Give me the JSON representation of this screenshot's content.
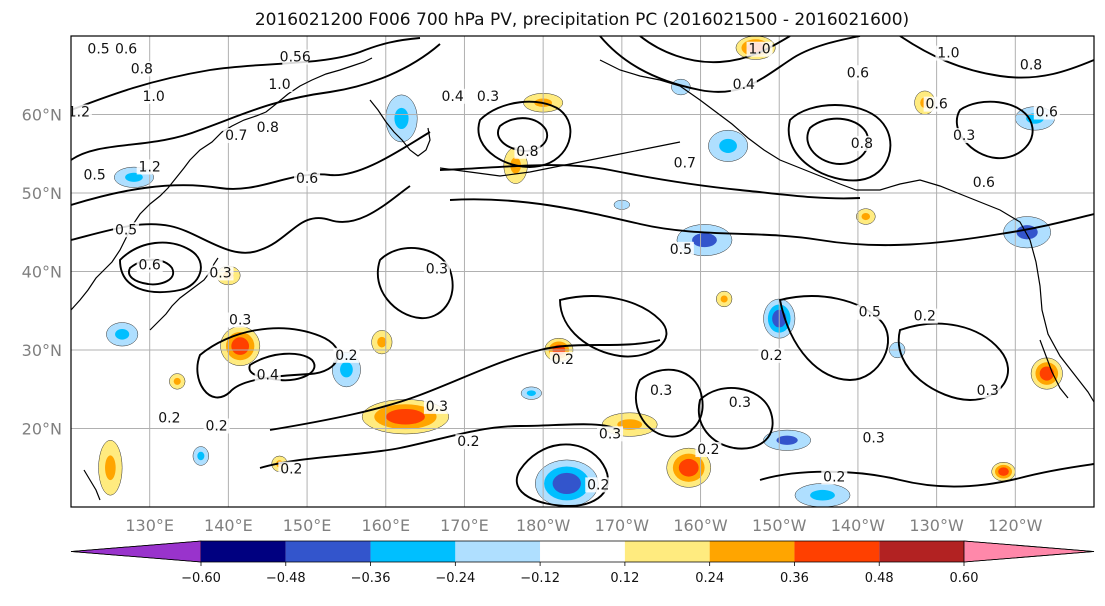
{
  "title": "2016021200 F006 700 hPa PV, precipitation PC (2016021500 - 2016021600)",
  "map": {
    "lon_range": [
      120,
      250
    ],
    "lat_range": [
      10,
      70
    ],
    "lat_labels": [
      {
        "lat": 20,
        "label": "20°N"
      },
      {
        "lat": 30,
        "label": "30°N"
      },
      {
        "lat": 40,
        "label": "40°N"
      },
      {
        "lat": 50,
        "label": "50°N"
      },
      {
        "lat": 60,
        "label": "60°N"
      }
    ],
    "lon_labels": [
      {
        "lon": 130,
        "label": "130°E"
      },
      {
        "lon": 140,
        "label": "140°E"
      },
      {
        "lon": 150,
        "label": "150°E"
      },
      {
        "lon": 160,
        "label": "160°E"
      },
      {
        "lon": 170,
        "label": "170°E"
      },
      {
        "lon": 180,
        "label": "180°W"
      },
      {
        "lon": 190,
        "label": "170°W"
      },
      {
        "lon": 200,
        "label": "160°W"
      },
      {
        "lon": 210,
        "label": "150°W"
      },
      {
        "lon": 220,
        "label": "140°W"
      },
      {
        "lon": 230,
        "label": "130°W"
      },
      {
        "lon": 240,
        "label": "120°W"
      }
    ],
    "contour_labels": [
      {
        "text": "0.5",
        "lon": 123.5,
        "lat": 68
      },
      {
        "text": "0.6",
        "lon": 127,
        "lat": 68
      },
      {
        "text": "0.8",
        "lon": 129,
        "lat": 65.5
      },
      {
        "text": "1.0",
        "lon": 130.5,
        "lat": 62
      },
      {
        "text": "1.2",
        "lon": 121,
        "lat": 60
      },
      {
        "text": "1.2",
        "lon": 130,
        "lat": 53
      },
      {
        "text": "0.5",
        "lon": 123,
        "lat": 52
      },
      {
        "text": "0.7",
        "lon": 141,
        "lat": 57
      },
      {
        "text": "0.8",
        "lon": 145,
        "lat": 58
      },
      {
        "text": "0.6",
        "lon": 150,
        "lat": 51.5
      },
      {
        "text": "0.56",
        "lon": 148.5,
        "lat": 67
      },
      {
        "text": "1.0",
        "lon": 146.5,
        "lat": 63.5
      },
      {
        "text": "0.5",
        "lon": 127,
        "lat": 45
      },
      {
        "text": "0.6",
        "lon": 130,
        "lat": 40.5
      },
      {
        "text": "0.3",
        "lon": 139,
        "lat": 39.5
      },
      {
        "text": "0.4",
        "lon": 168.5,
        "lat": 62
      },
      {
        "text": "0.3",
        "lon": 173,
        "lat": 62
      },
      {
        "text": "0.8",
        "lon": 178,
        "lat": 55
      },
      {
        "text": "0.3",
        "lon": 166.5,
        "lat": 40
      },
      {
        "text": "0.7",
        "lon": 198,
        "lat": 53.5
      },
      {
        "text": "0.5",
        "lon": 197.5,
        "lat": 42.5
      },
      {
        "text": "0.5",
        "lon": 221.5,
        "lat": 34.5
      },
      {
        "text": "0.4",
        "lon": 205.5,
        "lat": 63.5
      },
      {
        "text": "1.0",
        "lon": 207.5,
        "lat": 68
      },
      {
        "text": "0.6",
        "lon": 220,
        "lat": 65
      },
      {
        "text": "0.8",
        "lon": 220.5,
        "lat": 56
      },
      {
        "text": "0.6",
        "lon": 230,
        "lat": 61
      },
      {
        "text": "0.3",
        "lon": 233.5,
        "lat": 57
      },
      {
        "text": "0.6",
        "lon": 236,
        "lat": 51
      },
      {
        "text": "1.0",
        "lon": 231.5,
        "lat": 67.5
      },
      {
        "text": "0.8",
        "lon": 242,
        "lat": 66
      },
      {
        "text": "0.6",
        "lon": 244,
        "lat": 60
      },
      {
        "text": "0.2",
        "lon": 155,
        "lat": 29
      },
      {
        "text": "0.4",
        "lon": 145,
        "lat": 26.5
      },
      {
        "text": "0.3",
        "lon": 141.5,
        "lat": 33.5
      },
      {
        "text": "0.2",
        "lon": 132.5,
        "lat": 21
      },
      {
        "text": "0.2",
        "lon": 138.5,
        "lat": 20
      },
      {
        "text": "0.2",
        "lon": 148,
        "lat": 14.5
      },
      {
        "text": "0.3",
        "lon": 166.5,
        "lat": 22.5
      },
      {
        "text": "0.2",
        "lon": 170.5,
        "lat": 18
      },
      {
        "text": "0.2",
        "lon": 182.5,
        "lat": 28.5
      },
      {
        "text": "0.3",
        "lon": 188.5,
        "lat": 19
      },
      {
        "text": "0.3",
        "lon": 195,
        "lat": 24.5
      },
      {
        "text": "0.2",
        "lon": 201,
        "lat": 17
      },
      {
        "text": "0.2",
        "lon": 209,
        "lat": 29
      },
      {
        "text": "0.3",
        "lon": 205,
        "lat": 23
      },
      {
        "text": "0.2",
        "lon": 187,
        "lat": 12.5
      },
      {
        "text": "0.2",
        "lon": 217,
        "lat": 13.5
      },
      {
        "text": "0.3",
        "lon": 222,
        "lat": 18.5
      },
      {
        "text": "0.2",
        "lon": 228.5,
        "lat": 34
      },
      {
        "text": "0.3",
        "lon": 236.5,
        "lat": 24.5
      }
    ],
    "precip_blobs": [
      {
        "lon": 141.5,
        "lat": 30.5,
        "rx": 2.5,
        "ry": 2.5,
        "value": 0.45
      },
      {
        "lon": 162.5,
        "lat": 21.5,
        "rx": 5.5,
        "ry": 2.2,
        "value": 0.45
      },
      {
        "lon": 182,
        "lat": 30,
        "rx": 1.8,
        "ry": 1.5,
        "value": 0.4
      },
      {
        "lon": 191,
        "lat": 20.5,
        "rx": 3.5,
        "ry": 1.5,
        "value": 0.3
      },
      {
        "lon": 198.5,
        "lat": 15,
        "rx": 2.8,
        "ry": 2.5,
        "value": 0.42
      },
      {
        "lon": 207,
        "lat": 68.5,
        "rx": 2.5,
        "ry": 1.5,
        "value": 0.4
      },
      {
        "lon": 244,
        "lat": 27,
        "rx": 2,
        "ry": 2,
        "value": 0.4
      },
      {
        "lon": 238.5,
        "lat": 14.5,
        "rx": 1.5,
        "ry": 1.2,
        "value": 0.4
      },
      {
        "lon": 176.5,
        "lat": 53.5,
        "rx": 1.5,
        "ry": 2.3,
        "value": 0.3
      },
      {
        "lon": 180,
        "lat": 61.5,
        "rx": 2.5,
        "ry": 1.2,
        "value": 0.25
      },
      {
        "lon": 125,
        "lat": 15,
        "rx": 1.5,
        "ry": 3.5,
        "value": 0.3
      },
      {
        "lon": 159.5,
        "lat": 31,
        "rx": 1.3,
        "ry": 1.5,
        "value": 0.26
      },
      {
        "lon": 140,
        "lat": 39.5,
        "rx": 1.5,
        "ry": 1.2,
        "value": 0.26
      },
      {
        "lon": 228.5,
        "lat": 61.5,
        "rx": 1.3,
        "ry": 1.5,
        "value": 0.3
      },
      {
        "lon": 221,
        "lat": 47,
        "rx": 1.2,
        "ry": 1,
        "value": 0.3
      },
      {
        "lon": 203,
        "lat": 36.5,
        "rx": 1,
        "ry": 1,
        "value": 0.26
      },
      {
        "lon": 146.5,
        "lat": 15.5,
        "rx": 1,
        "ry": 1,
        "value": 0.28
      },
      {
        "lon": 133.5,
        "lat": 26,
        "rx": 1,
        "ry": 1,
        "value": 0.26
      },
      {
        "lon": 155,
        "lat": 27.5,
        "rx": 1.8,
        "ry": 2.2,
        "value": -0.3
      },
      {
        "lon": 162,
        "lat": 59.5,
        "rx": 2,
        "ry": 3,
        "value": -0.3
      },
      {
        "lon": 126.5,
        "lat": 32,
        "rx": 2,
        "ry": 1.5,
        "value": -0.3
      },
      {
        "lon": 128,
        "lat": 52,
        "rx": 2.5,
        "ry": 1.3,
        "value": -0.3
      },
      {
        "lon": 203.5,
        "lat": 56,
        "rx": 2.5,
        "ry": 2,
        "value": -0.35
      },
      {
        "lon": 200.5,
        "lat": 44,
        "rx": 3.5,
        "ry": 2,
        "value": -0.38
      },
      {
        "lon": 210,
        "lat": 34,
        "rx": 2,
        "ry": 2.5,
        "value": -0.42
      },
      {
        "lon": 183,
        "lat": 13,
        "rx": 4,
        "ry": 3,
        "value": -0.45
      },
      {
        "lon": 211,
        "lat": 18.5,
        "rx": 3,
        "ry": 1.3,
        "value": -0.38
      },
      {
        "lon": 215.5,
        "lat": 11.5,
        "rx": 3.5,
        "ry": 1.5,
        "value": -0.35
      },
      {
        "lon": 241.5,
        "lat": 45,
        "rx": 3,
        "ry": 2,
        "value": -0.4
      },
      {
        "lon": 242.5,
        "lat": 59.5,
        "rx": 2.5,
        "ry": 1.5,
        "value": -0.3
      },
      {
        "lon": 225,
        "lat": 30,
        "rx": 1,
        "ry": 1,
        "value": -0.2
      },
      {
        "lon": 136.5,
        "lat": 16.5,
        "rx": 1,
        "ry": 1.2,
        "value": -0.3
      },
      {
        "lon": 197.5,
        "lat": 63.5,
        "rx": 1.2,
        "ry": 1,
        "value": -0.2
      },
      {
        "lon": 178.5,
        "lat": 24.5,
        "rx": 1.3,
        "ry": 0.8,
        "value": -0.26
      },
      {
        "lon": 190,
        "lat": 48.5,
        "rx": 1,
        "ry": 0.6,
        "value": -0.2
      }
    ]
  },
  "colorbar": {
    "colors": [
      "#9933cc",
      "#000080",
      "#3355cc",
      "#00bfff",
      "#afdfff",
      "#ffffff",
      "#ffeb7f",
      "#ffa500",
      "#ff4000",
      "#b22222",
      "#ff88aa"
    ],
    "tick_labels": [
      "−0.60",
      "−0.48",
      "−0.36",
      "−0.24",
      "−0.12",
      "0.12",
      "0.24",
      "0.36",
      "0.48",
      "0.60"
    ]
  }
}
